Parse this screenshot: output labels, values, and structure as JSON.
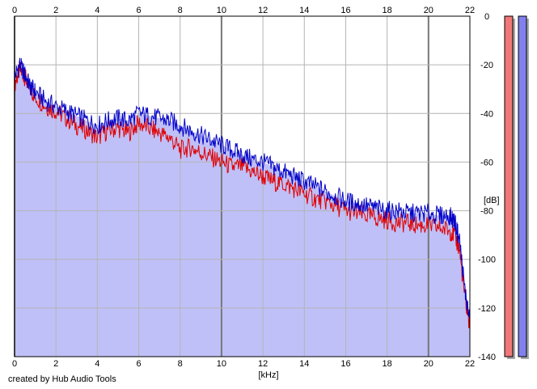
{
  "chart_data": {
    "type": "area",
    "xlabel": "[kHz]",
    "ylabel": "[dB]",
    "xlim": [
      0,
      22
    ],
    "ylim": [
      -140,
      0
    ],
    "x_ticks": [
      "0",
      "2",
      "4",
      "6",
      "8",
      "10",
      "12",
      "14",
      "16",
      "18",
      "20",
      "22"
    ],
    "y_ticks": [
      "0",
      "-20",
      "-40",
      "-60",
      "-80",
      "-100",
      "-120",
      "-140"
    ],
    "grid": true,
    "colors": {
      "fill": "#c0c0f8",
      "red": "#e00000",
      "blue": "#0000c8",
      "meter_red": "#f07878",
      "meter_blue": "#8080ee"
    },
    "series": [
      {
        "color": "#e00000",
        "x": [
          0,
          0.25,
          0.5,
          0.75,
          1,
          1.5,
          2,
          2.5,
          3,
          3.5,
          4,
          4.5,
          5,
          5.5,
          6,
          6.5,
          7,
          7.5,
          8,
          8.5,
          9,
          9.5,
          10,
          10.5,
          11,
          11.5,
          12,
          12.5,
          13,
          13.5,
          14,
          14.5,
          15,
          15.5,
          16,
          16.5,
          17,
          17.5,
          18,
          18.5,
          19,
          19.5,
          20,
          20.5,
          21,
          21.25,
          21.5,
          21.75,
          22
        ],
        "values": [
          -28,
          -22,
          -25,
          -30,
          -33,
          -37,
          -39,
          -42,
          -45,
          -47,
          -50,
          -47,
          -46,
          -48,
          -44,
          -46,
          -48,
          -50,
          -55,
          -54,
          -56,
          -58,
          -60,
          -62,
          -62,
          -64,
          -66,
          -68,
          -69,
          -71,
          -73,
          -75,
          -76,
          -78,
          -80,
          -81,
          -82,
          -83,
          -84,
          -85,
          -85,
          -86,
          -86,
          -87,
          -88,
          -90,
          -96,
          -115,
          -128
        ]
      },
      {
        "color": "#0000c8",
        "x": [
          0,
          0.25,
          0.5,
          0.75,
          1,
          1.5,
          2,
          2.5,
          3,
          3.5,
          4,
          4.5,
          5,
          5.5,
          6,
          6.5,
          7,
          7.5,
          8,
          8.5,
          9,
          9.5,
          10,
          10.5,
          11,
          11.5,
          12,
          12.5,
          13,
          13.5,
          14,
          14.5,
          15,
          15.5,
          16,
          16.5,
          17,
          17.5,
          18,
          18.5,
          19,
          19.5,
          20,
          20.5,
          21,
          21.25,
          21.5,
          21.75,
          22
        ],
        "values": [
          -25,
          -20,
          -24,
          -29,
          -31,
          -35,
          -37,
          -39,
          -41,
          -43,
          -45,
          -43,
          -42,
          -43,
          -40,
          -41,
          -42,
          -43,
          -45,
          -47,
          -49,
          -51,
          -53,
          -55,
          -57,
          -59,
          -60,
          -62,
          -64,
          -66,
          -68,
          -70,
          -72,
          -74,
          -76,
          -77,
          -78,
          -79,
          -80,
          -80,
          -81,
          -81,
          -81,
          -82,
          -82,
          -84,
          -92,
          -112,
          -126
        ]
      }
    ]
  },
  "meters": [
    {
      "color": "#f07878",
      "level": 1.0
    },
    {
      "color": "#8080ee",
      "level": 1.0
    }
  ],
  "footer": {
    "credit": "created by Hub Audio Tools"
  }
}
